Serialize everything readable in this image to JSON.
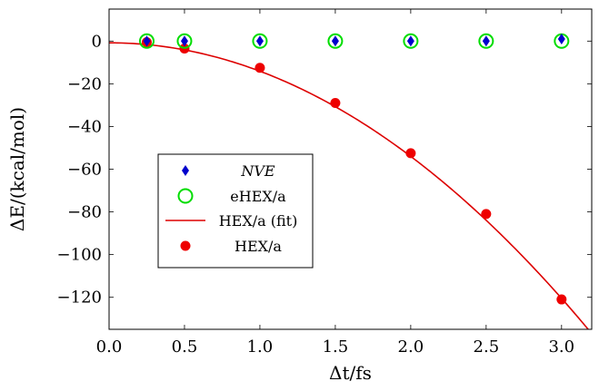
{
  "chart_data": {
    "type": "scatter",
    "xlabel": "Δt/fs",
    "ylabel": "ΔE/(kcal/mol)",
    "xlim": [
      0,
      3.2
    ],
    "ylim": [
      -135,
      15
    ],
    "xticks": [
      0.0,
      0.5,
      1.0,
      1.5,
      2.0,
      2.5,
      3.0
    ],
    "xtick_labels": [
      "0.0",
      "0.5",
      "1.0",
      "1.5",
      "2.0",
      "2.5",
      "3.0"
    ],
    "yticks": [
      0,
      -20,
      -40,
      -60,
      -80,
      -100,
      -120
    ],
    "ytick_labels": [
      "0",
      "−20",
      "−40",
      "−60",
      "−80",
      "−100",
      "−120"
    ],
    "grid": false,
    "legend_position": "center-left",
    "series": [
      {
        "name": "NVE",
        "kind": "scatter",
        "marker": "diamond",
        "color": "#0000cc",
        "x": [
          0.25,
          0.5,
          1.0,
          1.5,
          2.0,
          2.5,
          3.0
        ],
        "y": [
          0.0,
          0.0,
          0.0,
          0.0,
          0.0,
          0.0,
          1.0
        ]
      },
      {
        "name": "eHEX/a",
        "kind": "scatter",
        "marker": "open-circle",
        "color": "#00dd00",
        "x": [
          0.25,
          0.5,
          1.0,
          1.5,
          2.0,
          2.5,
          3.0
        ],
        "y": [
          0.0,
          0.0,
          0.0,
          0.0,
          0.0,
          0.0,
          0.0
        ]
      },
      {
        "name": "HEX/a (fit)",
        "kind": "line",
        "color": "#dd0000",
        "coefficients": {
          "a": -13.3,
          "b": 0.0,
          "c": -0.8
        },
        "x_range": [
          0.0,
          3.2
        ]
      },
      {
        "name": "HEX/a",
        "kind": "scatter",
        "marker": "filled-circle",
        "color": "#ee0000",
        "x": [
          0.25,
          0.5,
          1.0,
          1.5,
          2.0,
          2.5,
          3.0
        ],
        "y": [
          -0.5,
          -3.5,
          -12.5,
          -29.0,
          -52.5,
          -81.0,
          -121.0
        ]
      }
    ]
  }
}
